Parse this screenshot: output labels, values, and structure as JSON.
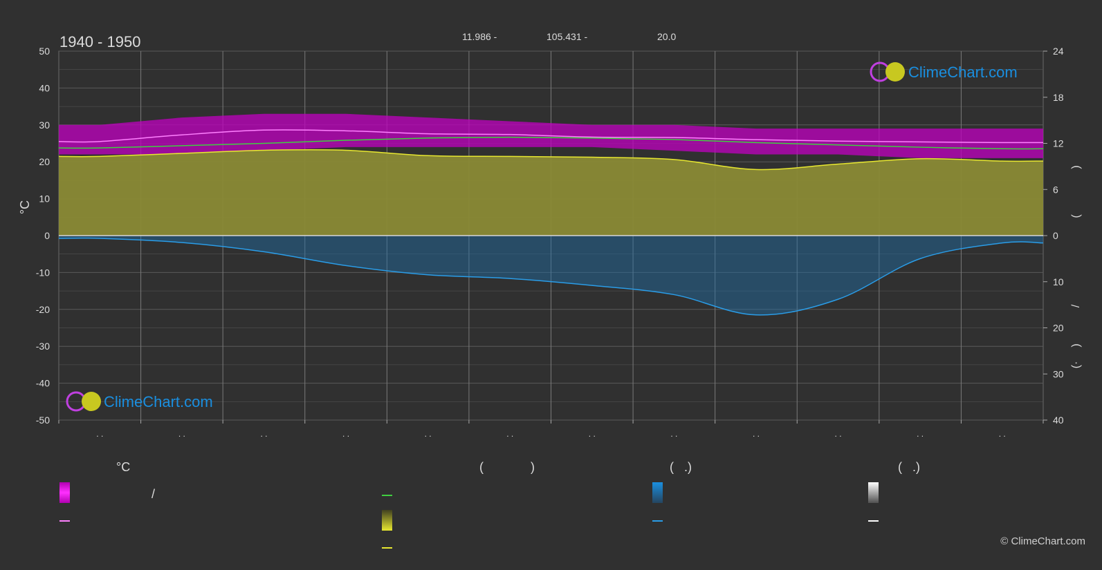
{
  "header": {
    "period": "1940 - 1950",
    "lat_label": "11.986 -",
    "lon_label": "105.431 -",
    "elev_label": "20.0"
  },
  "brand": {
    "name": "ClimeChart.com",
    "copyright": "© ClimeChart.com"
  },
  "colors": {
    "background": "#303030",
    "grid": "#5a5a5a",
    "sunshine_fill": "#8a8a35",
    "temp_range": "#c000c0",
    "mean_max_line": "#ff80ff",
    "daylight_line": "#40d040",
    "sunshine_line": "#e8e830",
    "precip_fill": "#1e6ea8",
    "precip_line": "#2a9de8",
    "brand_blue": "#1a8fe0"
  },
  "legend": {
    "temp_title": "°C",
    "col2_title_open": "(",
    "col2_title_close": ")",
    "col3_title": "(   .)",
    "col4_title": "(   .)",
    "slash": "/"
  },
  "chart_data": {
    "type": "line",
    "title": "1940 - 1950",
    "x": [
      1,
      2,
      3,
      4,
      5,
      6,
      7,
      8,
      9,
      10,
      11,
      12
    ],
    "x_tick_labels": [
      ". .",
      ". .",
      ". .",
      ". .",
      ". .",
      ". .",
      ". .",
      ". .",
      ". .",
      ". .",
      ". .",
      ". ."
    ],
    "ylabel_left": "°C",
    "ylim_left": [
      -50,
      50
    ],
    "yticks_left": [
      50,
      40,
      30,
      20,
      10,
      0,
      -10,
      -20,
      -30,
      -40,
      -50
    ],
    "ylim_right_top": [
      0,
      24
    ],
    "yticks_right_top": [
      24,
      18,
      12,
      6,
      0
    ],
    "yticks_right_bottom": [
      0,
      10,
      20,
      30,
      40
    ],
    "ylabel_right_marks": [
      ")",
      "(",
      "/",
      ")",
      "(·"
    ],
    "grid": true,
    "series": [
      {
        "key": "temp_max_band_top",
        "values": [
          30,
          32,
          33,
          33,
          32,
          31,
          30,
          30,
          29,
          29,
          29,
          29
        ]
      },
      {
        "key": "temp_max_band_bottom",
        "values": [
          22,
          22,
          23,
          24,
          24,
          24,
          24,
          23,
          22,
          22,
          21,
          21
        ]
      },
      {
        "key": "mean_max",
        "values": [
          25.5,
          27.3,
          28.6,
          28.4,
          27.6,
          27.4,
          26.7,
          26.6,
          26.0,
          25.6,
          25.4,
          25.2
        ]
      },
      {
        "key": "daylight_hours",
        "values": [
          11.4,
          11.7,
          12.0,
          12.4,
          12.7,
          12.8,
          12.7,
          12.5,
          12.1,
          11.8,
          11.5,
          11.3
        ]
      },
      {
        "key": "sunshine_hours",
        "values": [
          10.3,
          10.7,
          11.1,
          11.1,
          10.4,
          10.3,
          10.2,
          9.9,
          8.6,
          9.3,
          10.0,
          9.7
        ]
      },
      {
        "key": "precipitation_mm",
        "values": [
          0.6,
          1.5,
          3.5,
          6.5,
          8.5,
          9.3,
          10.8,
          12.8,
          17.2,
          13.8,
          5.0,
          1.6
        ]
      }
    ]
  }
}
